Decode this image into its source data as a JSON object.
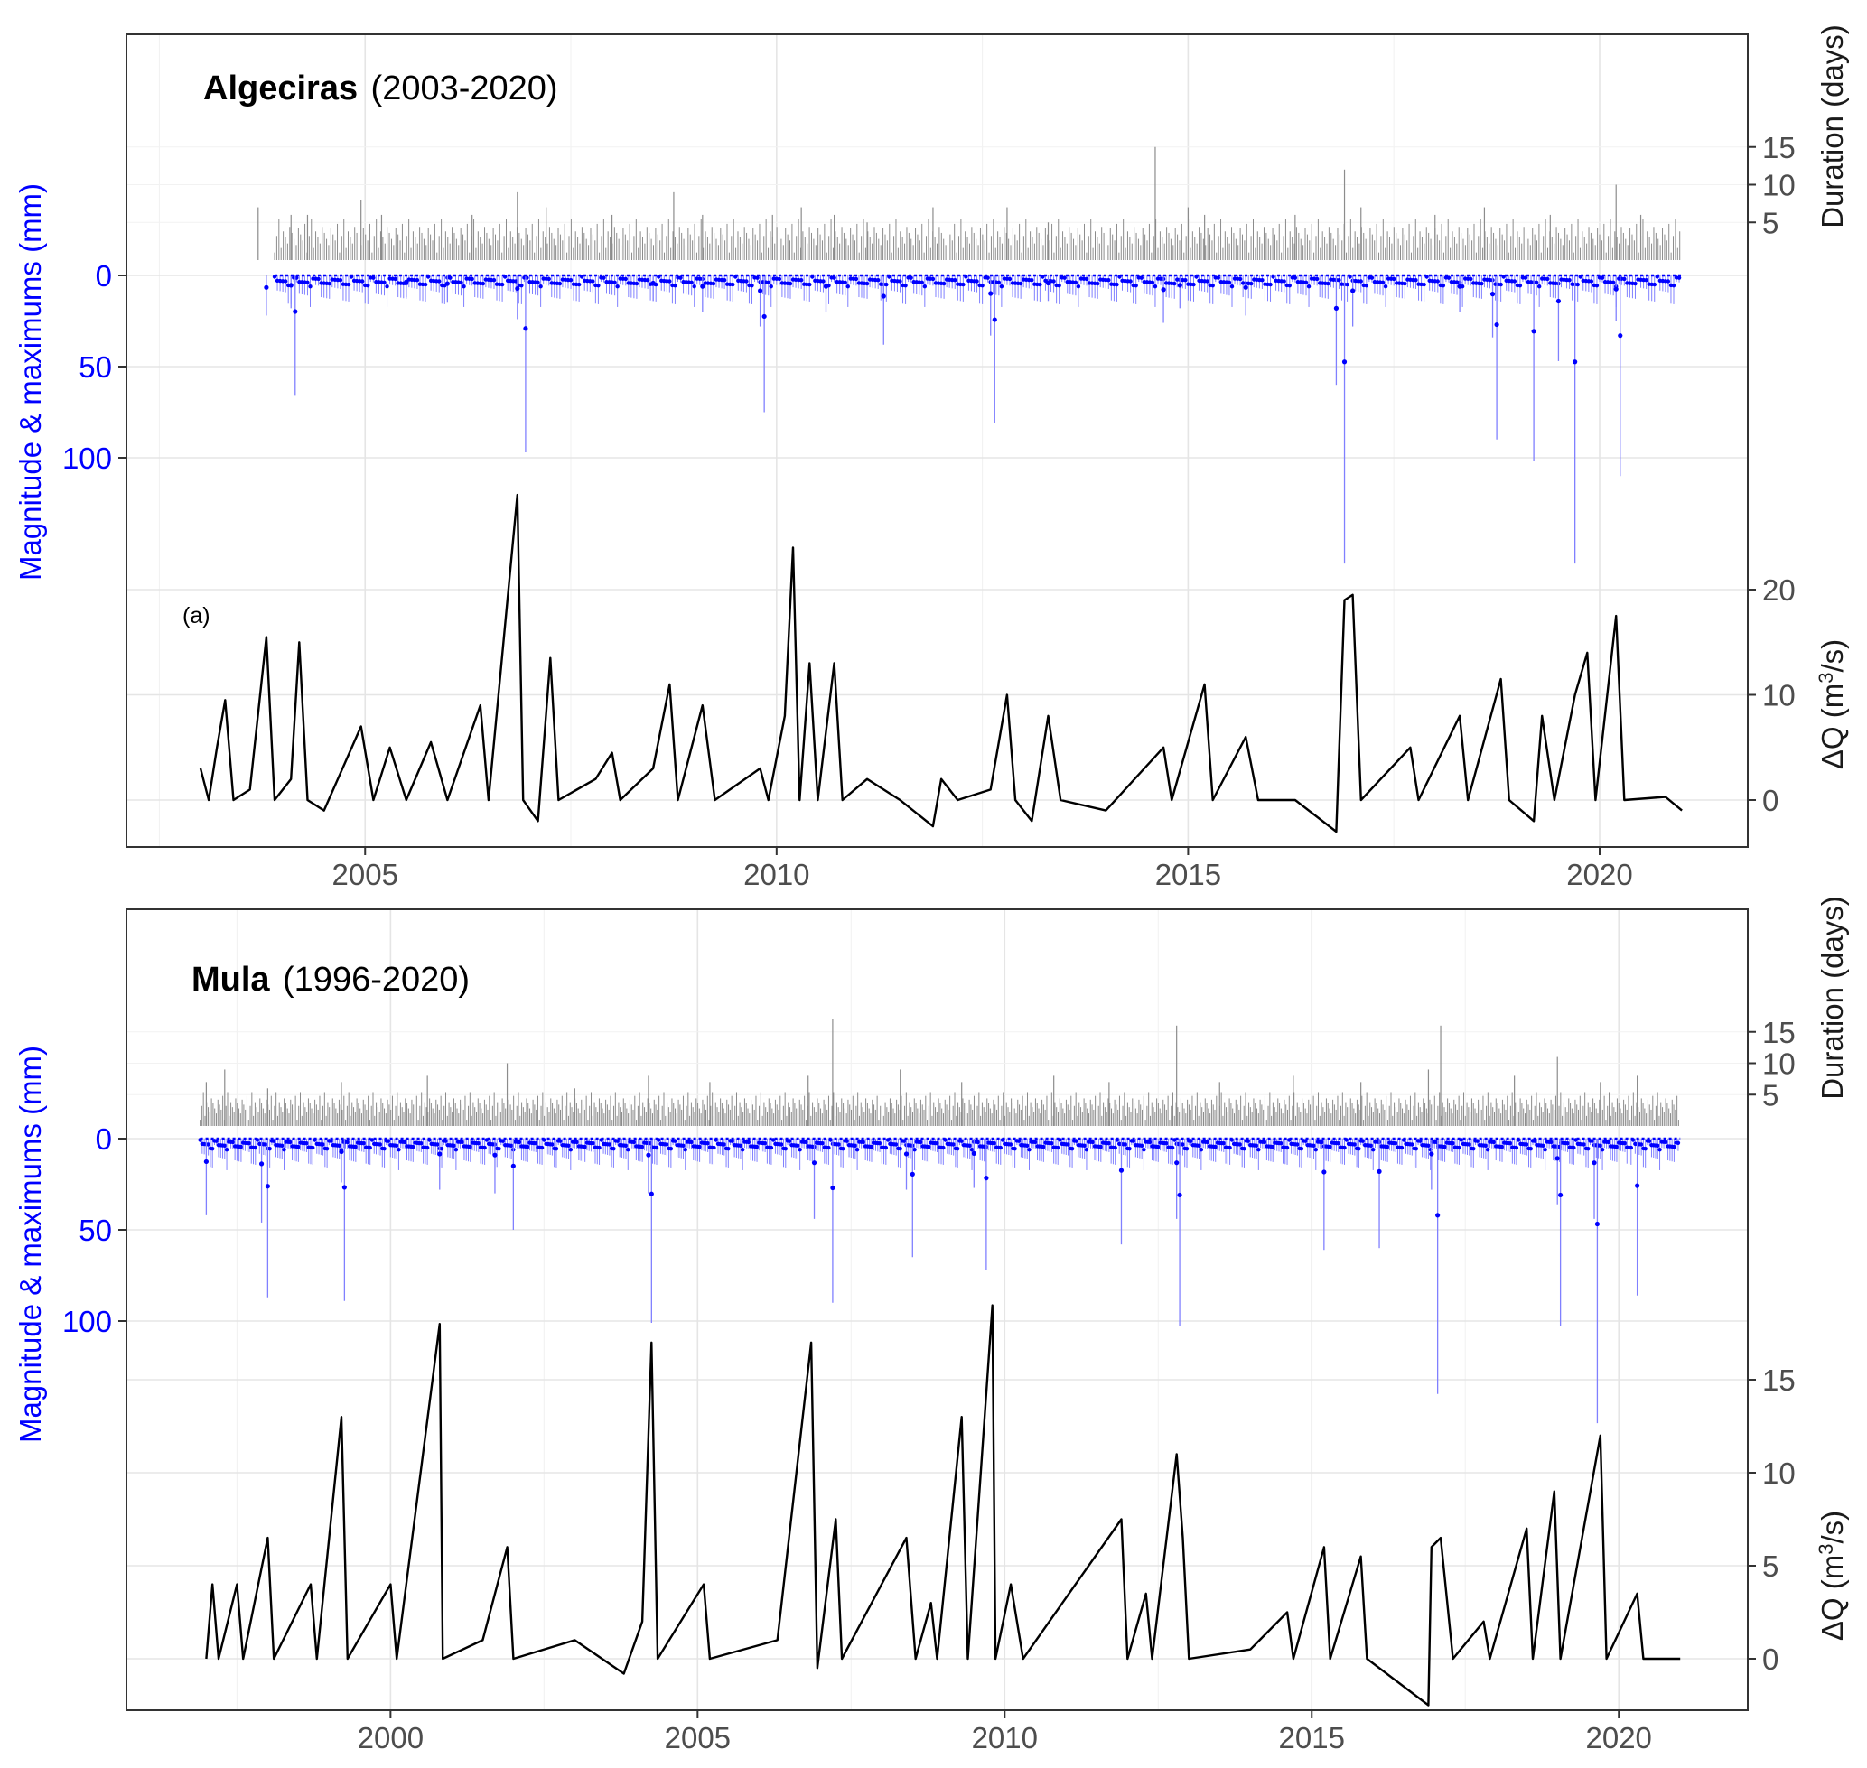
{
  "figure": {
    "background": "#ffffff"
  },
  "chart_data": [
    {
      "id": "algeciras",
      "type": "line",
      "title_bold": "Algeciras",
      "title_normal": "(2003-2020)",
      "tag": "(a)",
      "period": [
        2003,
        2020
      ],
      "xlim": [
        2002.1,
        2021.8
      ],
      "x_ticks": [
        2005,
        2010,
        2015,
        2020
      ],
      "ylabel_left": "Magnitude & maximums (mm)",
      "y_ticks_left": [
        0,
        50,
        100
      ],
      "magnitude_range": [
        0,
        160
      ],
      "ylabel_right_top": "Duration (days)",
      "y_ticks_right_top": [
        5,
        10,
        15
      ],
      "duration_range": [
        0,
        15
      ],
      "ylabel_right_bottom": "ΔQ (m³/s)",
      "ylabel_right_bottom_base": "ΔQ (m",
      "ylabel_right_bottom_sup": "3",
      "ylabel_right_bottom_tail": "/s)",
      "y_ticks_right_bottom": [
        0,
        10,
        20
      ],
      "dq_range": [
        -3,
        30
      ],
      "colors": {
        "duration": "#8c8c8c",
        "magnitude": "#0000ff",
        "magnitude_bar": "#8080ff",
        "dq": "#000000"
      },
      "duration_events": [
        {
          "x": 2003.7,
          "v": 7
        },
        {
          "x": 2004.1,
          "v": 6
        },
        {
          "x": 2004.3,
          "v": 6
        },
        {
          "x": 2004.95,
          "v": 8
        },
        {
          "x": 2005.2,
          "v": 6
        },
        {
          "x": 2006.3,
          "v": 6
        },
        {
          "x": 2006.85,
          "v": 9
        },
        {
          "x": 2007.2,
          "v": 7
        },
        {
          "x": 2008.0,
          "v": 6
        },
        {
          "x": 2008.75,
          "v": 9
        },
        {
          "x": 2009.1,
          "v": 6
        },
        {
          "x": 2009.95,
          "v": 6
        },
        {
          "x": 2010.3,
          "v": 7
        },
        {
          "x": 2010.7,
          "v": 6
        },
        {
          "x": 2011.1,
          "v": 5
        },
        {
          "x": 2011.9,
          "v": 7
        },
        {
          "x": 2012.8,
          "v": 7
        },
        {
          "x": 2013.3,
          "v": 5
        },
        {
          "x": 2014.6,
          "v": 15
        },
        {
          "x": 2015.0,
          "v": 7
        },
        {
          "x": 2015.2,
          "v": 6
        },
        {
          "x": 2016.3,
          "v": 6
        },
        {
          "x": 2016.9,
          "v": 12
        },
        {
          "x": 2017.1,
          "v": 7
        },
        {
          "x": 2018.0,
          "v": 6
        },
        {
          "x": 2018.6,
          "v": 7
        },
        {
          "x": 2019.4,
          "v": 6
        },
        {
          "x": 2020.2,
          "v": 10
        },
        {
          "x": 2020.5,
          "v": 6
        }
      ],
      "magnitude_events": [
        {
          "x": 2003.8,
          "v": 22
        },
        {
          "x": 2004.1,
          "v": 18
        },
        {
          "x": 2004.15,
          "v": 66
        },
        {
          "x": 2005.5,
          "v": 12
        },
        {
          "x": 2006.0,
          "v": 15
        },
        {
          "x": 2006.85,
          "v": 24
        },
        {
          "x": 2006.95,
          "v": 97
        },
        {
          "x": 2008.5,
          "v": 14
        },
        {
          "x": 2009.1,
          "v": 20
        },
        {
          "x": 2009.8,
          "v": 28
        },
        {
          "x": 2009.85,
          "v": 75
        },
        {
          "x": 2010.6,
          "v": 20
        },
        {
          "x": 2011.3,
          "v": 38
        },
        {
          "x": 2012.6,
          "v": 33
        },
        {
          "x": 2012.65,
          "v": 81
        },
        {
          "x": 2013.3,
          "v": 14
        },
        {
          "x": 2014.7,
          "v": 26
        },
        {
          "x": 2014.9,
          "v": 18
        },
        {
          "x": 2015.7,
          "v": 22
        },
        {
          "x": 2016.8,
          "v": 60
        },
        {
          "x": 2016.9,
          "v": 158
        },
        {
          "x": 2017.0,
          "v": 28
        },
        {
          "x": 2018.3,
          "v": 20
        },
        {
          "x": 2018.7,
          "v": 34
        },
        {
          "x": 2018.75,
          "v": 90
        },
        {
          "x": 2019.2,
          "v": 102
        },
        {
          "x": 2019.5,
          "v": 47
        },
        {
          "x": 2019.7,
          "v": 158
        },
        {
          "x": 2020.2,
          "v": 25
        },
        {
          "x": 2020.25,
          "v": 110
        }
      ],
      "dq_series": [
        {
          "x": 2003.0,
          "v": 3
        },
        {
          "x": 2003.1,
          "v": 0
        },
        {
          "x": 2003.2,
          "v": 5
        },
        {
          "x": 2003.3,
          "v": 9.5
        },
        {
          "x": 2003.4,
          "v": 0
        },
        {
          "x": 2003.6,
          "v": 1
        },
        {
          "x": 2003.8,
          "v": 15.5
        },
        {
          "x": 2003.9,
          "v": 0
        },
        {
          "x": 2004.1,
          "v": 2
        },
        {
          "x": 2004.2,
          "v": 15
        },
        {
          "x": 2004.3,
          "v": 0
        },
        {
          "x": 2004.5,
          "v": -1
        },
        {
          "x": 2004.95,
          "v": 7
        },
        {
          "x": 2005.1,
          "v": 0
        },
        {
          "x": 2005.3,
          "v": 5
        },
        {
          "x": 2005.5,
          "v": 0
        },
        {
          "x": 2005.8,
          "v": 5.5
        },
        {
          "x": 2006.0,
          "v": 0
        },
        {
          "x": 2006.4,
          "v": 9
        },
        {
          "x": 2006.5,
          "v": 0
        },
        {
          "x": 2006.85,
          "v": 29
        },
        {
          "x": 2006.92,
          "v": 0
        },
        {
          "x": 2007.1,
          "v": -2
        },
        {
          "x": 2007.25,
          "v": 13.5
        },
        {
          "x": 2007.35,
          "v": 0
        },
        {
          "x": 2007.8,
          "v": 2
        },
        {
          "x": 2008.0,
          "v": 4.5
        },
        {
          "x": 2008.1,
          "v": 0
        },
        {
          "x": 2008.5,
          "v": 3
        },
        {
          "x": 2008.7,
          "v": 11
        },
        {
          "x": 2008.8,
          "v": 0
        },
        {
          "x": 2009.1,
          "v": 9
        },
        {
          "x": 2009.25,
          "v": 0
        },
        {
          "x": 2009.8,
          "v": 3
        },
        {
          "x": 2009.9,
          "v": 0
        },
        {
          "x": 2010.1,
          "v": 8
        },
        {
          "x": 2010.2,
          "v": 24
        },
        {
          "x": 2010.28,
          "v": 0
        },
        {
          "x": 2010.4,
          "v": 13
        },
        {
          "x": 2010.5,
          "v": 0
        },
        {
          "x": 2010.7,
          "v": 13
        },
        {
          "x": 2010.8,
          "v": 0
        },
        {
          "x": 2011.1,
          "v": 2
        },
        {
          "x": 2011.5,
          "v": 0
        },
        {
          "x": 2011.9,
          "v": -2.5
        },
        {
          "x": 2012.0,
          "v": 2
        },
        {
          "x": 2012.2,
          "v": 0
        },
        {
          "x": 2012.6,
          "v": 1
        },
        {
          "x": 2012.8,
          "v": 10
        },
        {
          "x": 2012.9,
          "v": 0
        },
        {
          "x": 2013.1,
          "v": -2
        },
        {
          "x": 2013.3,
          "v": 8
        },
        {
          "x": 2013.45,
          "v": 0
        },
        {
          "x": 2014.0,
          "v": -1
        },
        {
          "x": 2014.7,
          "v": 5
        },
        {
          "x": 2014.8,
          "v": 0
        },
        {
          "x": 2015.2,
          "v": 11
        },
        {
          "x": 2015.3,
          "v": 0
        },
        {
          "x": 2015.7,
          "v": 6
        },
        {
          "x": 2015.85,
          "v": 0
        },
        {
          "x": 2016.3,
          "v": 0
        },
        {
          "x": 2016.8,
          "v": -3
        },
        {
          "x": 2016.9,
          "v": 19
        },
        {
          "x": 2017.0,
          "v": 19.5
        },
        {
          "x": 2017.1,
          "v": 0
        },
        {
          "x": 2017.7,
          "v": 5
        },
        {
          "x": 2017.8,
          "v": 0
        },
        {
          "x": 2018.3,
          "v": 8
        },
        {
          "x": 2018.4,
          "v": 0
        },
        {
          "x": 2018.8,
          "v": 11.5
        },
        {
          "x": 2018.9,
          "v": 0
        },
        {
          "x": 2019.2,
          "v": -2
        },
        {
          "x": 2019.3,
          "v": 8
        },
        {
          "x": 2019.45,
          "v": 0
        },
        {
          "x": 2019.7,
          "v": 10
        },
        {
          "x": 2019.85,
          "v": 14
        },
        {
          "x": 2019.95,
          "v": 0
        },
        {
          "x": 2020.2,
          "v": 17.5
        },
        {
          "x": 2020.3,
          "v": 0
        },
        {
          "x": 2020.8,
          "v": 0.3
        },
        {
          "x": 2021.0,
          "v": -1
        }
      ]
    },
    {
      "id": "mula",
      "type": "line",
      "title_bold": "Mula",
      "title_normal": "(1996-2020)",
      "tag": "",
      "period": [
        1996,
        2020
      ],
      "xlim": [
        1995.7,
        2022.1
      ],
      "x_ticks": [
        2000,
        2005,
        2010,
        2015,
        2020
      ],
      "ylabel_left": "Magnitude & maximums (mm)",
      "y_ticks_left": [
        0,
        50,
        100
      ],
      "magnitude_range": [
        0,
        160
      ],
      "ylabel_right_top": "Duration (days)",
      "y_ticks_right_top": [
        5,
        10,
        15
      ],
      "duration_range": [
        0,
        17
      ],
      "ylabel_right_bottom": "ΔQ (m³/s)",
      "ylabel_right_bottom_base": "ΔQ (m",
      "ylabel_right_bottom_sup": "3",
      "ylabel_right_bottom_tail": "/s)",
      "y_ticks_right_bottom": [
        0,
        5,
        10,
        15
      ],
      "dq_range": [
        -2.5,
        19
      ],
      "colors": {
        "duration": "#8c8c8c",
        "magnitude": "#0000ff",
        "magnitude_bar": "#8080ff",
        "dq": "#000000"
      },
      "duration_events": [
        {
          "x": 1997.0,
          "v": 7
        },
        {
          "x": 1997.3,
          "v": 9
        },
        {
          "x": 1998.0,
          "v": 6
        },
        {
          "x": 1999.2,
          "v": 7
        },
        {
          "x": 2000.6,
          "v": 8
        },
        {
          "x": 2001.9,
          "v": 10
        },
        {
          "x": 2003.0,
          "v": 6
        },
        {
          "x": 2004.2,
          "v": 8
        },
        {
          "x": 2005.2,
          "v": 7
        },
        {
          "x": 2006.8,
          "v": 8
        },
        {
          "x": 2007.2,
          "v": 17
        },
        {
          "x": 2008.3,
          "v": 9
        },
        {
          "x": 2009.3,
          "v": 7
        },
        {
          "x": 2010.8,
          "v": 8
        },
        {
          "x": 2011.7,
          "v": 7
        },
        {
          "x": 2012.8,
          "v": 16
        },
        {
          "x": 2013.5,
          "v": 7
        },
        {
          "x": 2014.7,
          "v": 8
        },
        {
          "x": 2015.8,
          "v": 7
        },
        {
          "x": 2016.9,
          "v": 9
        },
        {
          "x": 2017.1,
          "v": 16
        },
        {
          "x": 2018.3,
          "v": 8
        },
        {
          "x": 2019.0,
          "v": 11
        },
        {
          "x": 2019.7,
          "v": 7
        },
        {
          "x": 2020.3,
          "v": 8
        }
      ],
      "magnitude_events": [
        {
          "x": 1997.0,
          "v": 42
        },
        {
          "x": 1997.9,
          "v": 46
        },
        {
          "x": 1998.0,
          "v": 87
        },
        {
          "x": 1999.2,
          "v": 24
        },
        {
          "x": 1999.25,
          "v": 89
        },
        {
          "x": 2000.8,
          "v": 28
        },
        {
          "x": 2001.7,
          "v": 30
        },
        {
          "x": 2002.0,
          "v": 50
        },
        {
          "x": 2004.2,
          "v": 30
        },
        {
          "x": 2004.25,
          "v": 101
        },
        {
          "x": 2006.9,
          "v": 44
        },
        {
          "x": 2007.2,
          "v": 90
        },
        {
          "x": 2008.4,
          "v": 28
        },
        {
          "x": 2008.5,
          "v": 65
        },
        {
          "x": 2009.5,
          "v": 27
        },
        {
          "x": 2009.7,
          "v": 72
        },
        {
          "x": 2011.9,
          "v": 58
        },
        {
          "x": 2012.8,
          "v": 44
        },
        {
          "x": 2012.85,
          "v": 103
        },
        {
          "x": 2015.2,
          "v": 61
        },
        {
          "x": 2016.1,
          "v": 60
        },
        {
          "x": 2016.95,
          "v": 28
        },
        {
          "x": 2017.05,
          "v": 140
        },
        {
          "x": 2019.0,
          "v": 36
        },
        {
          "x": 2019.05,
          "v": 103
        },
        {
          "x": 2019.6,
          "v": 44
        },
        {
          "x": 2019.65,
          "v": 156
        },
        {
          "x": 2020.3,
          "v": 86
        }
      ],
      "dq_series": [
        {
          "x": 1997.0,
          "v": 0
        },
        {
          "x": 1997.1,
          "v": 4
        },
        {
          "x": 1997.2,
          "v": 0
        },
        {
          "x": 1997.5,
          "v": 4
        },
        {
          "x": 1997.6,
          "v": 0
        },
        {
          "x": 1998.0,
          "v": 6.5
        },
        {
          "x": 1998.1,
          "v": 0
        },
        {
          "x": 1998.7,
          "v": 4
        },
        {
          "x": 1998.8,
          "v": 0
        },
        {
          "x": 1999.2,
          "v": 13
        },
        {
          "x": 1999.3,
          "v": 0
        },
        {
          "x": 2000.0,
          "v": 4
        },
        {
          "x": 2000.1,
          "v": 0
        },
        {
          "x": 2000.8,
          "v": 18
        },
        {
          "x": 2000.85,
          "v": 0
        },
        {
          "x": 2001.5,
          "v": 1
        },
        {
          "x": 2001.9,
          "v": 6
        },
        {
          "x": 2002.0,
          "v": 0
        },
        {
          "x": 2003.0,
          "v": 1
        },
        {
          "x": 2003.8,
          "v": -0.8
        },
        {
          "x": 2004.1,
          "v": 2
        },
        {
          "x": 2004.25,
          "v": 17
        },
        {
          "x": 2004.35,
          "v": 0
        },
        {
          "x": 2005.1,
          "v": 4
        },
        {
          "x": 2005.2,
          "v": 0
        },
        {
          "x": 2006.3,
          "v": 1
        },
        {
          "x": 2006.85,
          "v": 17
        },
        {
          "x": 2006.95,
          "v": -0.5
        },
        {
          "x": 2007.25,
          "v": 7.5
        },
        {
          "x": 2007.35,
          "v": 0
        },
        {
          "x": 2008.4,
          "v": 6.5
        },
        {
          "x": 2008.55,
          "v": 0
        },
        {
          "x": 2008.8,
          "v": 3
        },
        {
          "x": 2008.9,
          "v": 0
        },
        {
          "x": 2009.3,
          "v": 13
        },
        {
          "x": 2009.4,
          "v": 0
        },
        {
          "x": 2009.8,
          "v": 19
        },
        {
          "x": 2009.85,
          "v": 0
        },
        {
          "x": 2010.1,
          "v": 4
        },
        {
          "x": 2010.3,
          "v": 0
        },
        {
          "x": 2011.9,
          "v": 7.5
        },
        {
          "x": 2012.0,
          "v": 0
        },
        {
          "x": 2012.3,
          "v": 3.5
        },
        {
          "x": 2012.4,
          "v": 0
        },
        {
          "x": 2012.8,
          "v": 11
        },
        {
          "x": 2012.9,
          "v": 6.5
        },
        {
          "x": 2013.0,
          "v": 0
        },
        {
          "x": 2014.0,
          "v": 0.5
        },
        {
          "x": 2014.6,
          "v": 2.5
        },
        {
          "x": 2014.7,
          "v": 0
        },
        {
          "x": 2015.2,
          "v": 6
        },
        {
          "x": 2015.3,
          "v": 0
        },
        {
          "x": 2015.8,
          "v": 5.5
        },
        {
          "x": 2015.9,
          "v": 0
        },
        {
          "x": 2016.9,
          "v": -2.5
        },
        {
          "x": 2016.95,
          "v": 6
        },
        {
          "x": 2017.1,
          "v": 6.5
        },
        {
          "x": 2017.3,
          "v": 0
        },
        {
          "x": 2017.8,
          "v": 2
        },
        {
          "x": 2017.9,
          "v": 0
        },
        {
          "x": 2018.5,
          "v": 7
        },
        {
          "x": 2018.6,
          "v": 0
        },
        {
          "x": 2018.95,
          "v": 9
        },
        {
          "x": 2019.05,
          "v": 0
        },
        {
          "x": 2019.7,
          "v": 12
        },
        {
          "x": 2019.8,
          "v": 0
        },
        {
          "x": 2020.3,
          "v": 3.5
        },
        {
          "x": 2020.4,
          "v": 0
        },
        {
          "x": 2021.0,
          "v": 0
        }
      ]
    }
  ]
}
